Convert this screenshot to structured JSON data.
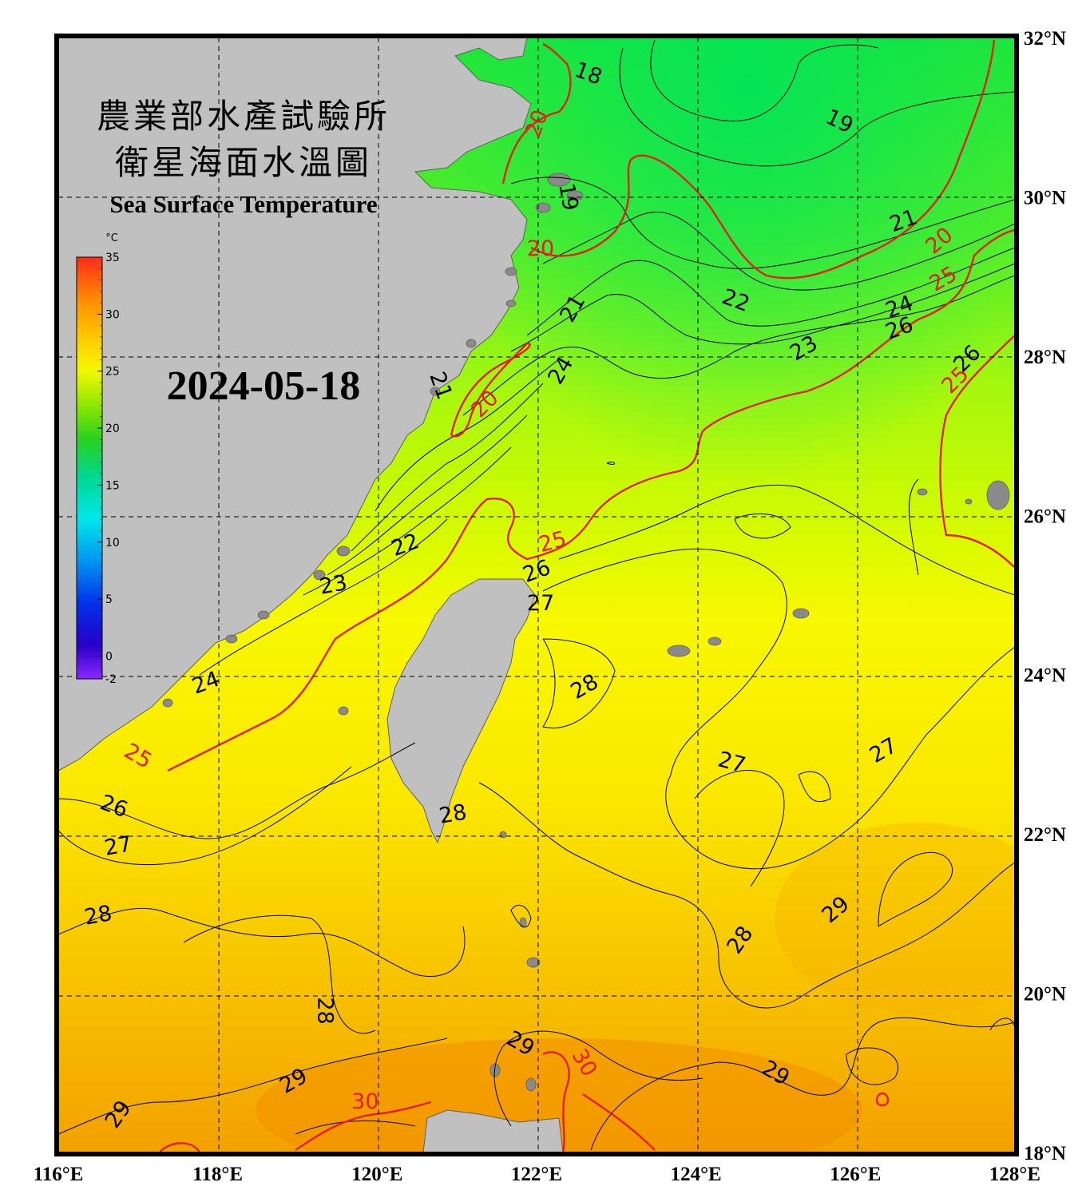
{
  "title": {
    "zh_line1": "農業部水產試驗所",
    "zh_line2": "衛星海面水溫圖",
    "en": "Sea Surface Temperature"
  },
  "date": "2024-05-18",
  "colorbar": {
    "unit": "°C",
    "ticks": [
      "35",
      "30",
      "25",
      "20",
      "15",
      "10",
      "5",
      "0",
      "-2"
    ],
    "min": -2,
    "max": 35
  },
  "axes": {
    "lon_labels": [
      "116°E",
      "118°E",
      "120°E",
      "122°E",
      "124°E",
      "126°E",
      "128°E"
    ],
    "lat_labels": [
      "32°N",
      "30°N",
      "28°N",
      "26°N",
      "24°N",
      "22°N",
      "20°N",
      "18°N"
    ],
    "lon_range": [
      116,
      128
    ],
    "lat_range": [
      18,
      32
    ]
  },
  "contour_labels": [
    {
      "text": "18",
      "lon": 122.65,
      "lat": 31.55,
      "color": "black",
      "rot": 20
    },
    {
      "text": "19",
      "lon": 125.8,
      "lat": 30.95,
      "color": "black",
      "rot": 25
    },
    {
      "text": "19",
      "lon": 122.4,
      "lat": 30.0,
      "color": "black",
      "rot": 80
    },
    {
      "text": "20",
      "lon": 122.0,
      "lat": 30.92,
      "color": "red",
      "rot": -70
    },
    {
      "text": "20",
      "lon": 122.05,
      "lat": 29.35,
      "color": "red",
      "rot": 0
    },
    {
      "text": "20",
      "lon": 127.05,
      "lat": 29.45,
      "color": "red",
      "rot": -40
    },
    {
      "text": "20",
      "lon": 121.35,
      "lat": 27.4,
      "color": "red",
      "rot": -45
    },
    {
      "text": "21",
      "lon": 126.6,
      "lat": 29.7,
      "color": "black",
      "rot": -20
    },
    {
      "text": "21",
      "lon": 122.45,
      "lat": 28.6,
      "color": "black",
      "rot": -60
    },
    {
      "text": "21",
      "lon": 120.8,
      "lat": 27.63,
      "color": "black",
      "rot": 70
    },
    {
      "text": "22",
      "lon": 124.5,
      "lat": 28.7,
      "color": "black",
      "rot": 20
    },
    {
      "text": "22",
      "lon": 120.35,
      "lat": 25.63,
      "color": "black",
      "rot": -20
    },
    {
      "text": "23",
      "lon": 125.35,
      "lat": 28.1,
      "color": "black",
      "rot": -30
    },
    {
      "text": "23",
      "lon": 119.45,
      "lat": 25.13,
      "color": "black",
      "rot": -10
    },
    {
      "text": "24",
      "lon": 126.55,
      "lat": 28.62,
      "color": "black",
      "rot": -20
    },
    {
      "text": "24",
      "lon": 122.3,
      "lat": 27.82,
      "color": "black",
      "rot": -60
    },
    {
      "text": "24",
      "lon": 117.85,
      "lat": 23.9,
      "color": "black",
      "rot": -20
    },
    {
      "text": "25",
      "lon": 127.1,
      "lat": 28.97,
      "color": "red",
      "rot": -30
    },
    {
      "text": "25",
      "lon": 127.25,
      "lat": 27.7,
      "color": "red",
      "rot": -45
    },
    {
      "text": "25",
      "lon": 122.2,
      "lat": 25.67,
      "color": "red",
      "rot": -15
    },
    {
      "text": "25",
      "lon": 117.0,
      "lat": 22.98,
      "color": "red",
      "rot": 30
    },
    {
      "text": "26",
      "lon": 126.55,
      "lat": 28.35,
      "color": "black",
      "rot": -20
    },
    {
      "text": "26",
      "lon": 127.4,
      "lat": 27.97,
      "color": "black",
      "rot": -45
    },
    {
      "text": "26",
      "lon": 122.0,
      "lat": 25.3,
      "color": "black",
      "rot": -20
    },
    {
      "text": "26",
      "lon": 116.7,
      "lat": 22.35,
      "color": "black",
      "rot": 20
    },
    {
      "text": "27",
      "lon": 122.05,
      "lat": 24.9,
      "color": "black",
      "rot": 0
    },
    {
      "text": "27",
      "lon": 126.35,
      "lat": 23.05,
      "color": "black",
      "rot": -30
    },
    {
      "text": "27",
      "lon": 124.45,
      "lat": 22.9,
      "color": "black",
      "rot": 15
    },
    {
      "text": "27",
      "lon": 116.75,
      "lat": 21.85,
      "color": "black",
      "rot": -10
    },
    {
      "text": "28",
      "lon": 122.6,
      "lat": 23.85,
      "color": "black",
      "rot": -30
    },
    {
      "text": "28",
      "lon": 120.95,
      "lat": 22.25,
      "color": "black",
      "rot": -10
    },
    {
      "text": "28",
      "lon": 124.55,
      "lat": 20.67,
      "color": "black",
      "rot": -55
    },
    {
      "text": "28",
      "lon": 116.5,
      "lat": 20.98,
      "color": "black",
      "rot": -10
    },
    {
      "text": "28",
      "lon": 119.35,
      "lat": 19.78,
      "color": "black",
      "rot": 90
    },
    {
      "text": "29",
      "lon": 125.75,
      "lat": 21.05,
      "color": "black",
      "rot": -40
    },
    {
      "text": "29",
      "lon": 121.8,
      "lat": 19.37,
      "color": "black",
      "rot": 30
    },
    {
      "text": "29",
      "lon": 125.0,
      "lat": 19.0,
      "color": "black",
      "rot": 30
    },
    {
      "text": "29",
      "lon": 118.95,
      "lat": 18.9,
      "color": "black",
      "rot": -30
    },
    {
      "text": "29",
      "lon": 116.75,
      "lat": 18.48,
      "color": "black",
      "rot": -55
    },
    {
      "text": "30",
      "lon": 122.6,
      "lat": 19.13,
      "color": "red",
      "rot": 60
    },
    {
      "text": "30",
      "lon": 119.85,
      "lat": 18.64,
      "color": "red",
      "rot": 0
    }
  ]
}
